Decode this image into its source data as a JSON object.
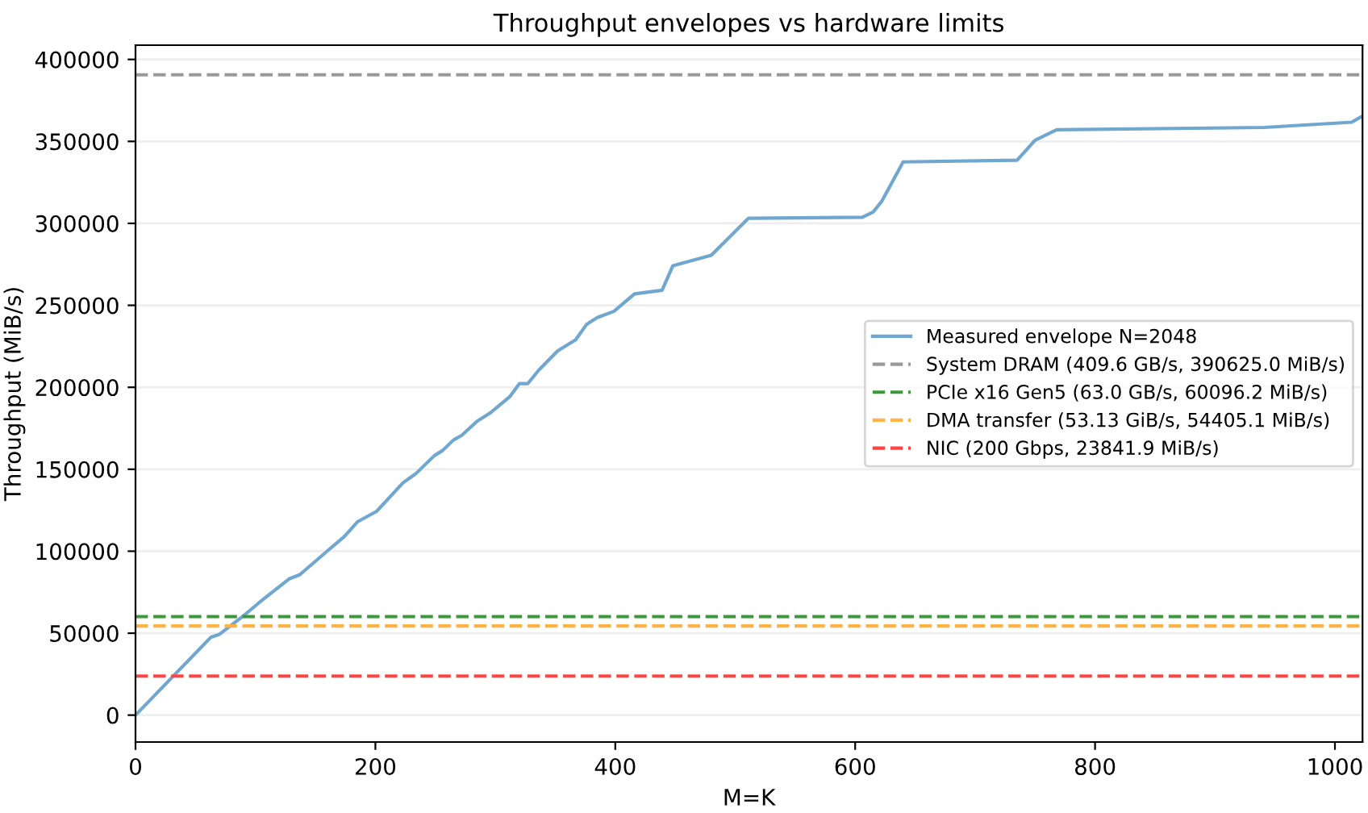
{
  "chart_data": {
    "type": "line",
    "title": "Throughput envelopes vs hardware limits",
    "xlabel": "M=K",
    "ylabel": "Throughput (MiB/s)",
    "xlim": [
      0,
      1023
    ],
    "xticks": [
      0,
      200,
      400,
      600,
      800,
      1000
    ],
    "ylim": [
      -16400,
      408700
    ],
    "yticks": [
      0,
      50000,
      100000,
      150000,
      200000,
      250000,
      300000,
      350000,
      400000
    ],
    "grid": "y",
    "legend": "right",
    "marker": "none",
    "line_style": "solid",
    "series": [
      {
        "name": "Measured envelope N=2048",
        "color": "#6fa7d0",
        "x": [
          0,
          63,
          70,
          90,
          103,
          128,
          137,
          161,
          174,
          185,
          201,
          223,
          234,
          249,
          256,
          265,
          272,
          285,
          296,
          312,
          320,
          327,
          336,
          352,
          367,
          376,
          385,
          399,
          416,
          439,
          448,
          480,
          511,
          606,
          615,
          622,
          640,
          735,
          750,
          768,
          941,
          1014,
          1023
        ],
        "values": [
          0,
          47600,
          49300,
          60600,
          68600,
          83100,
          85700,
          100800,
          108900,
          117900,
          124300,
          141700,
          147500,
          158200,
          161400,
          167800,
          170700,
          179400,
          184500,
          194200,
          202200,
          202200,
          210300,
          222200,
          229000,
          238300,
          242500,
          246400,
          257000,
          259200,
          274100,
          280500,
          303100,
          303700,
          306900,
          313300,
          337500,
          338500,
          350700,
          357100,
          358500,
          361700,
          365500
        ]
      }
    ],
    "ref_lines": [
      {
        "axis": "y",
        "value": 390625.0,
        "label": "System DRAM (409.6 GB/s, 390625.0 MiB/s)",
        "color": "#999999",
        "line_style": "dashed"
      },
      {
        "axis": "y",
        "value": 60096.2,
        "label": "PCIe x16 Gen5 (63.0 GB/s, 60096.2 MiB/s)",
        "color": "#3a9a3a",
        "line_style": "dashed"
      },
      {
        "axis": "y",
        "value": 54405.1,
        "label": "DMA transfer (53.13 GiB/s, 54405.1 MiB/s)",
        "color": "#ffb347",
        "line_style": "dashed"
      },
      {
        "axis": "y",
        "value": 23841.9,
        "label": "NIC (200 Gbps, 23841.9 MiB/s)",
        "color": "#ff4444",
        "line_style": "dashed"
      }
    ]
  }
}
